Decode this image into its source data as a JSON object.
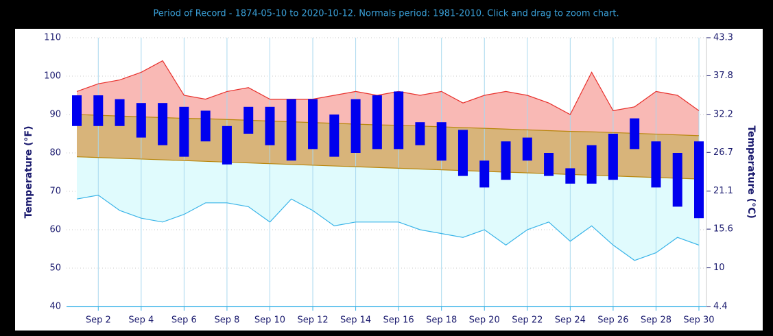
{
  "chart_data": {
    "type": "temperature-range",
    "title": "Period of Record - 1874-05-10 to 2020-10-12. Normals period: 1981-2010. Click and drag to zoom chart.",
    "y_label": "Temperature (°F)",
    "y2_label": "Temperature (°C)",
    "categories": [
      null,
      "Sep 2",
      null,
      "Sep 4",
      null,
      "Sep 6",
      null,
      "Sep 8",
      null,
      "Sep 10",
      null,
      "Sep 12",
      null,
      "Sep 14",
      null,
      "Sep 16",
      null,
      "Sep 18",
      null,
      "Sep 20",
      null,
      "Sep 22",
      null,
      "Sep 24",
      null,
      "Sep 26",
      null,
      "Sep 28",
      null,
      "Sep 30"
    ],
    "record_high": {
      "color": "#e8302c",
      "fill": "#f9b9b5",
      "values": [
        96,
        98,
        99,
        101,
        104,
        95,
        94,
        96,
        97,
        94,
        94,
        94,
        95,
        96,
        95,
        96,
        95,
        96,
        93,
        95,
        96,
        95,
        93,
        90,
        101,
        91,
        92,
        96,
        95,
        91
      ]
    },
    "normal_high": {
      "color": "#b8860b",
      "values": [
        90.0,
        89.8,
        89.6,
        89.4,
        89.2,
        89.0,
        88.9,
        88.7,
        88.5,
        88.3,
        88.1,
        87.9,
        87.7,
        87.5,
        87.3,
        87.2,
        87.0,
        86.8,
        86.6,
        86.4,
        86.2,
        86.0,
        85.8,
        85.6,
        85.5,
        85.3,
        85.1,
        84.9,
        84.7,
        84.5
      ]
    },
    "normal_low": {
      "color": "#b8860b",
      "fill": "#d8b47a",
      "values": [
        79.0,
        78.8,
        78.6,
        78.4,
        78.2,
        78.0,
        77.8,
        77.6,
        77.4,
        77.2,
        77.0,
        76.8,
        76.6,
        76.4,
        76.2,
        76.0,
        75.8,
        75.6,
        75.4,
        75.2,
        75.0,
        74.8,
        74.6,
        74.4,
        74.2,
        74.0,
        73.8,
        73.6,
        73.4,
        73.2
      ]
    },
    "record_low": {
      "color": "#3ab4e8",
      "fill": "#e0fbfd",
      "values": [
        68,
        69,
        65,
        63,
        62,
        64,
        67,
        67,
        66,
        62,
        68,
        65,
        61,
        62,
        62,
        62,
        60,
        59,
        58,
        60,
        56,
        60,
        62,
        57,
        61,
        56,
        52,
        54,
        58,
        56
      ]
    },
    "observed": {
      "color": "#0000ee",
      "high": [
        95,
        95,
        94,
        93,
        93,
        92,
        91,
        87,
        92,
        92,
        94,
        94,
        90,
        94,
        95,
        96,
        88,
        88,
        86,
        78,
        83,
        84,
        80,
        76,
        82,
        85,
        89,
        83,
        80,
        83
      ],
      "low": [
        87,
        87,
        87,
        84,
        82,
        79,
        83,
        77,
        85,
        82,
        78,
        81,
        79,
        80,
        81,
        81,
        82,
        78,
        74,
        71,
        73,
        78,
        74,
        72,
        72,
        73,
        81,
        71,
        66,
        63
      ]
    },
    "ylim": [
      40,
      110
    ],
    "yticks": [
      40,
      50,
      60,
      70,
      80,
      90,
      100,
      110
    ],
    "y2lim": [
      4.4,
      43.3
    ],
    "y2ticks": [
      4.4,
      10,
      15.6,
      21.1,
      26.7,
      32.2,
      37.8,
      43.3
    ],
    "grid": true
  }
}
